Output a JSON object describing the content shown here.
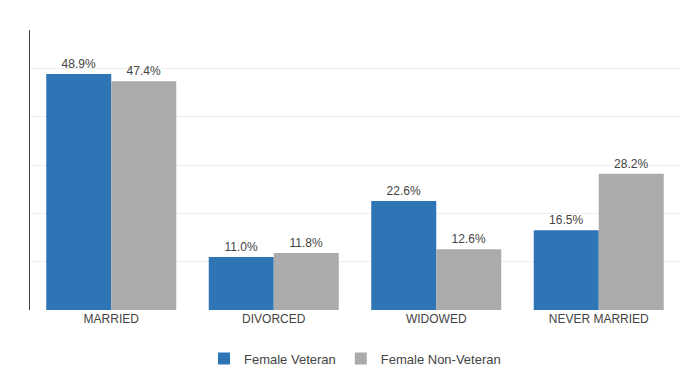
{
  "chart_data": {
    "type": "bar",
    "categories": [
      "MARRIED",
      "DIVORCED",
      "WIDOWED",
      "NEVER MARRIED"
    ],
    "series": [
      {
        "name": "Female Veteran",
        "color": "#2E75B6",
        "values": [
          48.9,
          11.0,
          22.6,
          16.5
        ],
        "value_labels": [
          "48.9%",
          "11.0%",
          "22.6%",
          "16.5%"
        ]
      },
      {
        "name": "Female Non-Veteran",
        "color": "#ABABAB",
        "values": [
          47.4,
          11.8,
          12.6,
          28.2
        ],
        "value_labels": [
          "47.4%",
          "11.8%",
          "12.6%",
          "28.2%"
        ]
      }
    ],
    "ylim": [
      0,
      58
    ],
    "yticks": [
      0,
      10,
      20,
      30,
      40,
      50
    ],
    "grid": true,
    "tick_labels": "x",
    "data_labels": true,
    "legend": "bottom"
  }
}
